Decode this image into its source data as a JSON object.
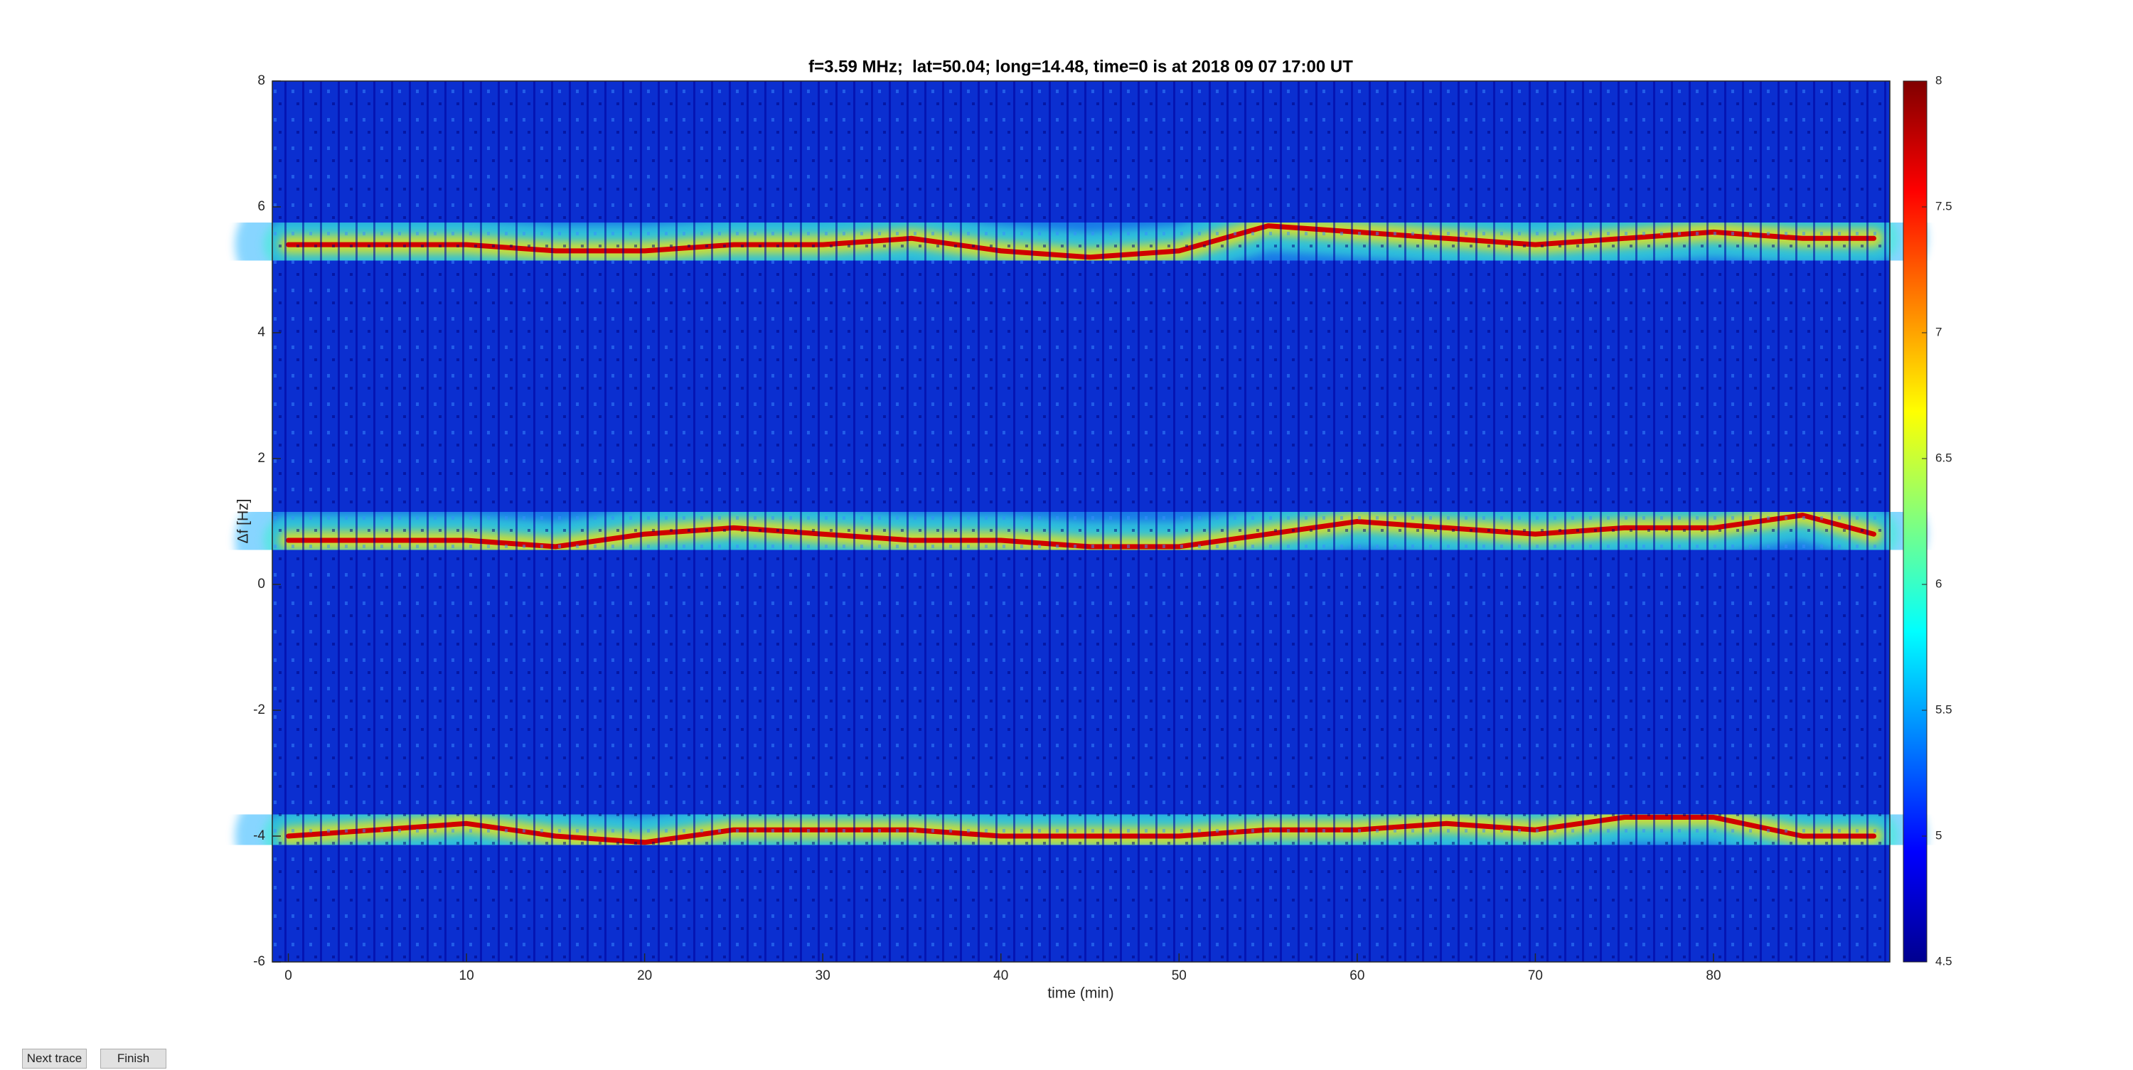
{
  "chart_data": {
    "type": "spectrogram",
    "title": "f=3.59 MHz;  lat=50.04; long=14.48, time=0 is at 2018 09 07 17:00 UT",
    "xlabel": "time (min)",
    "ylabel": "Δf [Hz]",
    "x": [
      0,
      5,
      10,
      15,
      20,
      25,
      30,
      35,
      40,
      45,
      50,
      55,
      60,
      65,
      70,
      75,
      80,
      85,
      89
    ],
    "series": [
      {
        "color": "#d00000",
        "values": [
          5.4,
          5.4,
          5.4,
          5.3,
          5.3,
          5.4,
          5.4,
          5.5,
          5.3,
          5.2,
          5.3,
          5.7,
          5.6,
          5.5,
          5.4,
          5.5,
          5.6,
          5.5,
          5.5
        ]
      },
      {
        "color": "#d00000",
        "values": [
          0.7,
          0.7,
          0.7,
          0.6,
          0.8,
          0.9,
          0.8,
          0.7,
          0.7,
          0.6,
          0.6,
          0.8,
          1.0,
          0.9,
          0.8,
          0.9,
          0.9,
          1.1,
          0.8
        ]
      },
      {
        "color": "#d00000",
        "values": [
          -4.0,
          -3.9,
          -3.8,
          -4.0,
          -4.1,
          -3.9,
          -3.9,
          -3.9,
          -4.0,
          -4.0,
          -4.0,
          -3.9,
          -3.9,
          -3.8,
          -3.9,
          -3.7,
          -3.7,
          -4.0,
          -4.0
        ]
      }
    ],
    "background_color": "#0b2fd0",
    "xlim": [
      -0.9,
      89.9
    ],
    "xticks": [
      0,
      10,
      20,
      30,
      40,
      50,
      60,
      70,
      80
    ],
    "ylim": [
      -6,
      8
    ],
    "yticks": [
      -6,
      -4,
      -2,
      0,
      2,
      4,
      6,
      8
    ],
    "colormap": "jet",
    "clim": [
      4.5,
      8
    ],
    "cticks": [
      4.5,
      5,
      5.5,
      6,
      6.5,
      7,
      7.5,
      8
    ]
  },
  "ui": {
    "buttons": [
      "Next trace",
      "Finish"
    ]
  }
}
